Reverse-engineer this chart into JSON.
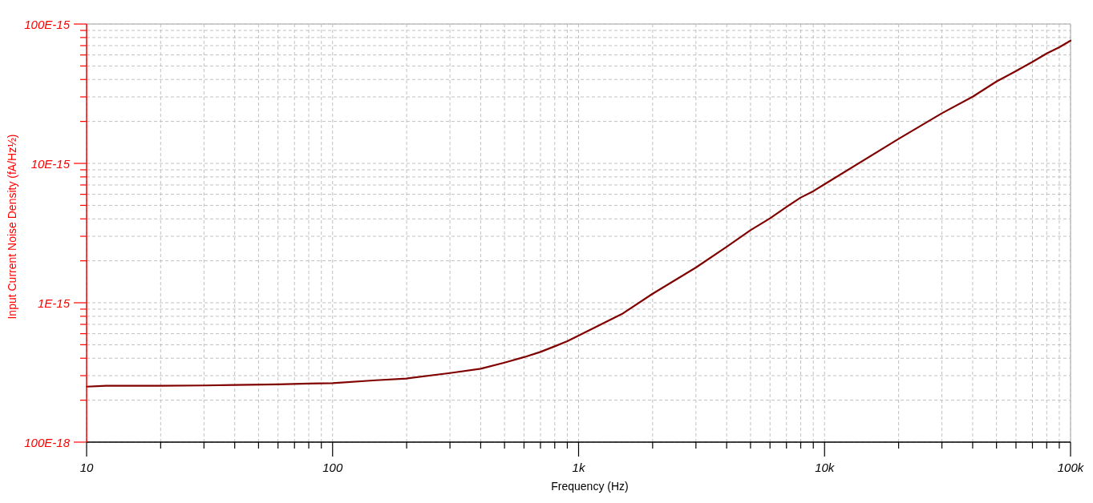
{
  "chart_data": {
    "type": "line",
    "xlabel": "Frequency (Hz)",
    "ylabel": "Input Current Noise Density (fA/Hz½)",
    "x": [
      10,
      12,
      20,
      30,
      40,
      60,
      80,
      100,
      150,
      200,
      300,
      400,
      500,
      600,
      700,
      800,
      900,
      1000,
      1500,
      2000,
      3000,
      4000,
      5000,
      6000,
      7000,
      8000,
      9000,
      10000,
      20000,
      30000,
      40000,
      50000,
      60000,
      70000,
      80000,
      90000,
      100000
    ],
    "series": [
      {
        "color": "#800000",
        "values": [
          2.5e-16,
          2.54e-16,
          2.54e-16,
          2.55e-16,
          2.57e-16,
          2.6e-16,
          2.63e-16,
          2.65e-16,
          2.78e-16,
          2.86e-16,
          3.13e-16,
          3.36e-16,
          3.72e-16,
          4.07e-16,
          4.44e-16,
          4.87e-16,
          5.3e-16,
          5.81e-16,
          8.3e-16,
          1.16e-15,
          1.79e-15,
          2.52e-15,
          3.32e-15,
          4.03e-15,
          4.87e-15,
          5.69e-15,
          6.32e-15,
          7.09e-15,
          1.5e-14,
          2.29e-14,
          3.01e-14,
          3.87e-14,
          4.6e-14,
          5.35e-14,
          6.15e-14,
          6.81e-14,
          7.6e-14
        ]
      }
    ],
    "log": "xy",
    "grid": true,
    "xlim": [
      10,
      100000
    ],
    "xticks": [
      10,
      {
        "value": 20,
        "label": null
      },
      {
        "value": 30,
        "label": null
      },
      {
        "value": 40,
        "label": null
      },
      {
        "value": 50,
        "label": null
      },
      {
        "value": 60,
        "label": null
      },
      {
        "value": 70,
        "label": null
      },
      {
        "value": 80,
        "label": null
      },
      {
        "value": 90,
        "label": null
      },
      100,
      {
        "value": 200,
        "label": null
      },
      {
        "value": 300,
        "label": null
      },
      {
        "value": 400,
        "label": null
      },
      {
        "value": 500,
        "label": null
      },
      {
        "value": 600,
        "label": null
      },
      {
        "value": 700,
        "label": null
      },
      {
        "value": 800,
        "label": null
      },
      {
        "value": 900,
        "label": null
      },
      {
        "value": 1000,
        "label": "1k"
      },
      {
        "value": 2000,
        "label": null
      },
      {
        "value": 3000,
        "label": null
      },
      {
        "value": 4000,
        "label": null
      },
      {
        "value": 5000,
        "label": null
      },
      {
        "value": 6000,
        "label": null
      },
      {
        "value": 7000,
        "label": null
      },
      {
        "value": 8000,
        "label": null
      },
      {
        "value": 9000,
        "label": null
      },
      {
        "value": 10000,
        "label": "10k"
      },
      {
        "value": 20000,
        "label": null
      },
      {
        "value": 30000,
        "label": null
      },
      {
        "value": 40000,
        "label": null
      },
      {
        "value": 50000,
        "label": null
      },
      {
        "value": 60000,
        "label": null
      },
      {
        "value": 70000,
        "label": null
      },
      {
        "value": 80000,
        "label": null
      },
      {
        "value": 90000,
        "label": null
      },
      {
        "value": 100000,
        "label": "100k"
      }
    ],
    "ylim": [
      1e-16,
      1e-13
    ],
    "yticks": [
      {
        "value": 1e-16,
        "label": "100E-18"
      },
      {
        "value": 2e-16,
        "label": null
      },
      {
        "value": 3e-16,
        "label": null
      },
      {
        "value": 4e-16,
        "label": null
      },
      {
        "value": 5e-16,
        "label": null
      },
      {
        "value": 6e-16,
        "label": null
      },
      {
        "value": 7e-16,
        "label": null
      },
      {
        "value": 8e-16,
        "label": null
      },
      {
        "value": 9e-16,
        "label": null
      },
      {
        "value": 1e-15,
        "label": "1E-15"
      },
      {
        "value": 2e-15,
        "label": null
      },
      {
        "value": 3e-15,
        "label": null
      },
      {
        "value": 4e-15,
        "label": null
      },
      {
        "value": 5e-15,
        "label": null
      },
      {
        "value": 6e-15,
        "label": null
      },
      {
        "value": 7e-15,
        "label": null
      },
      {
        "value": 8e-15,
        "label": null
      },
      {
        "value": 9e-15,
        "label": null
      },
      {
        "value": 1e-14,
        "label": "10E-15"
      },
      {
        "value": 2e-14,
        "label": null
      },
      {
        "value": 3e-14,
        "label": null
      },
      {
        "value": 4e-14,
        "label": null
      },
      {
        "value": 5e-14,
        "label": null
      },
      {
        "value": 6e-14,
        "label": null
      },
      {
        "value": 7e-14,
        "label": null
      },
      {
        "value": 8e-14,
        "label": null
      },
      {
        "value": 9e-14,
        "label": null
      },
      {
        "value": 1e-13,
        "label": "100E-15"
      }
    ]
  }
}
